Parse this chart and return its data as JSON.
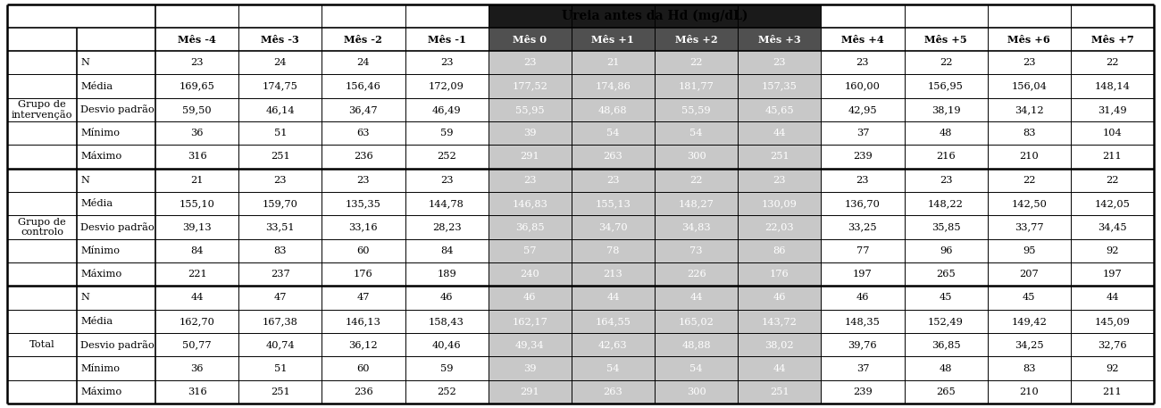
{
  "title": "Ureia antes da Hd (mg/dL)",
  "col_headers": [
    "Mês -4",
    "Mês -3",
    "Mês -2",
    "Mês -1",
    "Mês 0",
    "Mês +1",
    "Mês +2",
    "Mês +3",
    "Mês +4",
    "Mês +5",
    "Mês +6",
    "Mês +7"
  ],
  "row_groups": [
    {
      "group_label": "Grupo de\nintervenção",
      "rows": [
        {
          "label": "N",
          "values": [
            "23",
            "24",
            "24",
            "23",
            "23",
            "21",
            "22",
            "23",
            "23",
            "22",
            "23",
            "22"
          ]
        },
        {
          "label": "Média",
          "values": [
            "169,65",
            "174,75",
            "156,46",
            "172,09",
            "177,52",
            "174,86",
            "181,77",
            "157,35",
            "160,00",
            "156,95",
            "156,04",
            "148,14"
          ]
        },
        {
          "label": "Desvio padrão",
          "values": [
            "59,50",
            "46,14",
            "36,47",
            "46,49",
            "55,95",
            "48,68",
            "55,59",
            "45,65",
            "42,95",
            "38,19",
            "34,12",
            "31,49"
          ]
        },
        {
          "label": "Mínimo",
          "values": [
            "36",
            "51",
            "63",
            "59",
            "39",
            "54",
            "54",
            "44",
            "37",
            "48",
            "83",
            "104"
          ]
        },
        {
          "label": "Máximo",
          "values": [
            "316",
            "251",
            "236",
            "252",
            "291",
            "263",
            "300",
            "251",
            "239",
            "216",
            "210",
            "211"
          ]
        }
      ]
    },
    {
      "group_label": "Grupo de\ncontrolo",
      "rows": [
        {
          "label": "N",
          "values": [
            "21",
            "23",
            "23",
            "23",
            "23",
            "23",
            "22",
            "23",
            "23",
            "23",
            "22",
            "22"
          ]
        },
        {
          "label": "Média",
          "values": [
            "155,10",
            "159,70",
            "135,35",
            "144,78",
            "146,83",
            "155,13",
            "148,27",
            "130,09",
            "136,70",
            "148,22",
            "142,50",
            "142,05"
          ]
        },
        {
          "label": "Desvio padrão",
          "values": [
            "39,13",
            "33,51",
            "33,16",
            "28,23",
            "36,85",
            "34,70",
            "34,83",
            "22,03",
            "33,25",
            "35,85",
            "33,77",
            "34,45"
          ]
        },
        {
          "label": "Mínimo",
          "values": [
            "84",
            "83",
            "60",
            "84",
            "57",
            "78",
            "73",
            "86",
            "77",
            "96",
            "95",
            "92"
          ]
        },
        {
          "label": "Máximo",
          "values": [
            "221",
            "237",
            "176",
            "189",
            "240",
            "213",
            "226",
            "176",
            "197",
            "265",
            "207",
            "197"
          ]
        }
      ]
    },
    {
      "group_label": "Total",
      "rows": [
        {
          "label": "N",
          "values": [
            "44",
            "47",
            "47",
            "46",
            "46",
            "44",
            "44",
            "46",
            "46",
            "45",
            "45",
            "44"
          ]
        },
        {
          "label": "Média",
          "values": [
            "162,70",
            "167,38",
            "146,13",
            "158,43",
            "162,17",
            "164,55",
            "165,02",
            "143,72",
            "148,35",
            "152,49",
            "149,42",
            "145,09"
          ]
        },
        {
          "label": "Desvio padrão",
          "values": [
            "50,77",
            "40,74",
            "36,12",
            "40,46",
            "49,34",
            "42,63",
            "48,88",
            "38,02",
            "39,76",
            "36,85",
            "34,25",
            "32,76"
          ]
        },
        {
          "label": "Mínimo",
          "values": [
            "36",
            "51",
            "60",
            "59",
            "39",
            "54",
            "54",
            "44",
            "37",
            "48",
            "83",
            "92"
          ]
        },
        {
          "label": "Máximo",
          "values": [
            "316",
            "251",
            "236",
            "252",
            "291",
            "263",
            "300",
            "251",
            "239",
            "265",
            "210",
            "211"
          ]
        }
      ]
    }
  ],
  "shaded_data_col_indices": [
    4,
    5,
    6,
    7
  ],
  "shade_color": "#c8c8c8",
  "header1_shade_color": "#1a1a1a",
  "header2_shade_color": "#505050",
  "white": "#ffffff",
  "black": "#000000",
  "light_gray": "#e8e8e8"
}
